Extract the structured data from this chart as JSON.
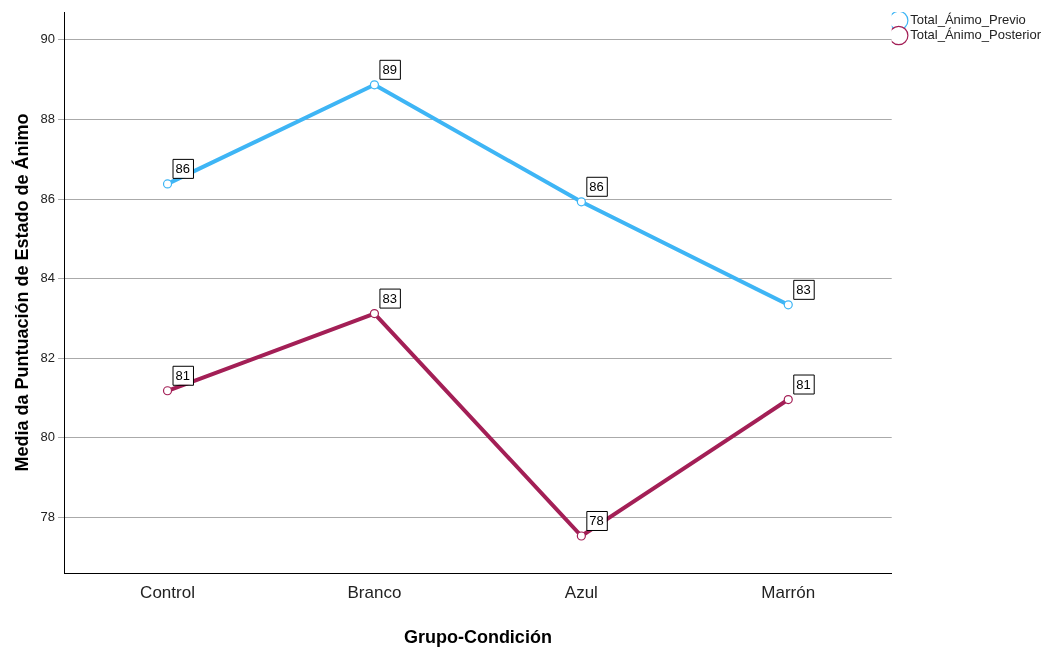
{
  "chart_data": {
    "type": "line",
    "xlabel": "Grupo-Condición",
    "ylabel": "Media da Puntuación de Estado de Ánimo",
    "categories": [
      "Control",
      "Branco",
      "Azul",
      "Marrón"
    ],
    "series": [
      {
        "name": "Total_Ánimo_Previo",
        "color": "#3eb5f5",
        "values": [
          86.38,
          88.87,
          85.93,
          83.34
        ],
        "value_labels": [
          "86",
          "89",
          "86",
          "83"
        ]
      },
      {
        "name": "Total_Ánimo_Posterior",
        "color": "#a31f56",
        "values": [
          81.18,
          83.12,
          77.53,
          80.96
        ],
        "value_labels": [
          "81",
          "83",
          "78",
          "81"
        ]
      }
    ],
    "ylim": [
      76.6,
      90.7
    ],
    "yticks": [
      78,
      80,
      82,
      84,
      86,
      88,
      90
    ],
    "grid": "y",
    "legend": "top right",
    "marker": "circle",
    "line_style": "solid"
  }
}
